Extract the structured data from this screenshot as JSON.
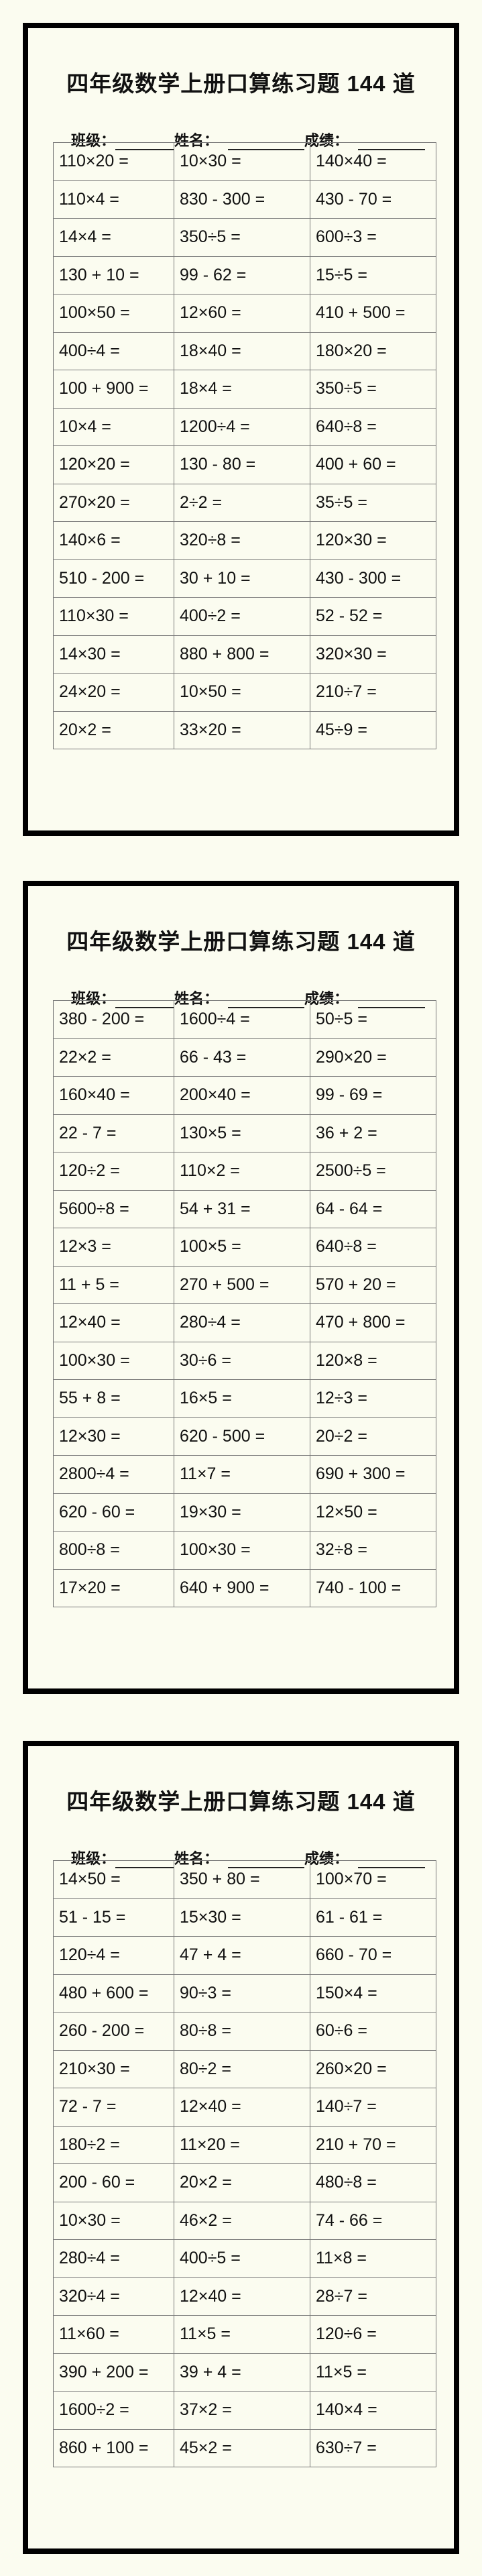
{
  "sheets": [
    {
      "title": "四年级数学上册口算练习题 144 道",
      "labels": {
        "class": "班级：",
        "name": "姓名：",
        "score": "成绩："
      },
      "rows": [
        [
          "110×20 =",
          "10×30 =",
          "140×40 ="
        ],
        [
          "110×4 =",
          "830 - 300 =",
          "430 - 70 ="
        ],
        [
          "14×4 =",
          "350÷5 =",
          "600÷3 ="
        ],
        [
          "130 + 10 =",
          "99 - 62 =",
          "15÷5 ="
        ],
        [
          "100×50 =",
          "12×60 =",
          "410 + 500 ="
        ],
        [
          "400÷4 =",
          "18×40 =",
          "180×20 ="
        ],
        [
          "100 + 900 =",
          "18×4 =",
          "350÷5 ="
        ],
        [
          "10×4 =",
          "1200÷4 =",
          "640÷8 ="
        ],
        [
          "120×20 =",
          "130 - 80 =",
          "400 + 60 ="
        ],
        [
          "270×20 =",
          "2÷2 =",
          "35÷5 ="
        ],
        [
          "140×6 =",
          "320÷8 =",
          "120×30 ="
        ],
        [
          "510 - 200 =",
          "30 + 10 =",
          "430 - 300 ="
        ],
        [
          "110×30 =",
          "400÷2 =",
          "52 - 52 ="
        ],
        [
          "14×30 =",
          "880 + 800 =",
          "320×30 ="
        ],
        [
          "24×20 =",
          "10×50 =",
          "210÷7 ="
        ],
        [
          "20×2 =",
          "33×20 =",
          "45÷9 ="
        ]
      ]
    },
    {
      "title": "四年级数学上册口算练习题 144 道",
      "labels": {
        "class": "班级：",
        "name": "姓名：",
        "score": "成绩："
      },
      "rows": [
        [
          "380 - 200 =",
          "1600÷4 =",
          "50÷5 ="
        ],
        [
          "22×2 =",
          "66 - 43 =",
          "290×20 ="
        ],
        [
          "160×40 =",
          "200×40 =",
          "99 - 69 ="
        ],
        [
          "22 - 7 =",
          "130×5 =",
          "36 + 2 ="
        ],
        [
          "120÷2 =",
          "110×2 =",
          "2500÷5 ="
        ],
        [
          "5600÷8 =",
          "54 + 31 =",
          "64 - 64 ="
        ],
        [
          "12×3 =",
          "100×5 =",
          "640÷8 ="
        ],
        [
          "11 + 5 =",
          "270 + 500 =",
          "570 + 20 ="
        ],
        [
          "12×40 =",
          "280÷4 =",
          "470 + 800 ="
        ],
        [
          "100×30 =",
          "30÷6 =",
          "120×8 ="
        ],
        [
          "55 + 8 =",
          "16×5 =",
          "12÷3 ="
        ],
        [
          "12×30 =",
          "620 - 500 =",
          "20÷2 ="
        ],
        [
          "2800÷4 =",
          "11×7 =",
          "690 + 300 ="
        ],
        [
          "620 - 60 =",
          "19×30 =",
          "12×50 ="
        ],
        [
          "800÷8 =",
          "100×30 =",
          "32÷8 ="
        ],
        [
          "17×20 =",
          "640 + 900 =",
          "740 - 100 ="
        ]
      ]
    },
    {
      "title": "四年级数学上册口算练习题 144 道",
      "labels": {
        "class": "班级：",
        "name": "姓名：",
        "score": "成绩："
      },
      "rows": [
        [
          "14×50 =",
          "350 + 80 =",
          "100×70 ="
        ],
        [
          "51 - 15 =",
          "15×30 =",
          "61 - 61 ="
        ],
        [
          "120÷4 =",
          "47 + 4 =",
          "660 - 70 ="
        ],
        [
          "480 + 600 =",
          "90÷3 =",
          "150×4 ="
        ],
        [
          "260 - 200 =",
          "80÷8 =",
          "60÷6 ="
        ],
        [
          "210×30 =",
          "80÷2 =",
          "260×20 ="
        ],
        [
          "72 - 7 =",
          "12×40 =",
          "140÷7 ="
        ],
        [
          "180÷2 =",
          "11×20 =",
          "210 + 70 ="
        ],
        [
          "200 - 60 =",
          "20×2 =",
          "480÷8 ="
        ],
        [
          "10×30 =",
          "46×2 =",
          "74 - 66 ="
        ],
        [
          "280÷4 =",
          "400÷5 =",
          "11×8 ="
        ],
        [
          "320÷4 =",
          "12×40 =",
          "28÷7 ="
        ],
        [
          "11×60 =",
          "11×5 =",
          "120÷6 ="
        ],
        [
          "390 + 200 =",
          "39 + 4 =",
          "11×5 ="
        ],
        [
          "1600÷2 =",
          "37×2 =",
          "140×4 ="
        ],
        [
          "860 + 100 =",
          "45×2 =",
          "630÷7 ="
        ]
      ]
    }
  ]
}
